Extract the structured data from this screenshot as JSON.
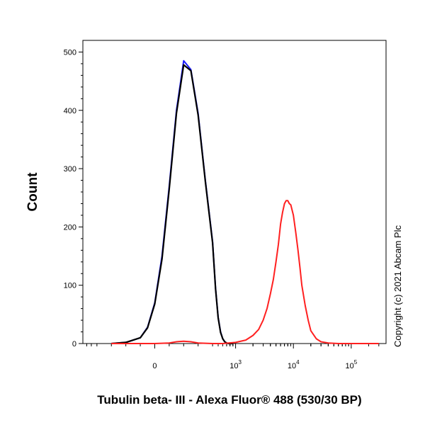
{
  "chart_data": {
    "type": "line",
    "title": "",
    "xlabel": "Tubulin beta- III - Alexa Fluor® 488 (530/30 BP)",
    "ylabel": "Count",
    "x_scale": "biexponential",
    "ylim": [
      0,
      520
    ],
    "y_ticks": [
      0,
      100,
      200,
      300,
      400,
      500
    ],
    "x_ticks": [
      {
        "value": 0,
        "label": "0"
      },
      {
        "value": 1000,
        "label": "10",
        "exp": "3"
      },
      {
        "value": 10000,
        "label": "10",
        "exp": "4"
      },
      {
        "value": 100000,
        "label": "10",
        "exp": "5"
      }
    ],
    "grid": false,
    "legend": "none",
    "annotation": "Copyright (c) 2021 Abcam Plc",
    "series": [
      {
        "color": "#1a1aff",
        "x": [
          -300,
          -200,
          -100,
          -50,
          0,
          50,
          100,
          150,
          200,
          250,
          300,
          350,
          400,
          450,
          500,
          550,
          600,
          650,
          700,
          750,
          800,
          900
        ],
        "y": [
          0,
          2,
          10,
          28,
          70,
          150,
          270,
          400,
          485,
          470,
          395,
          280,
          175,
          95,
          45,
          20,
          8,
          3,
          1,
          0,
          0,
          0
        ]
      },
      {
        "color": "#000000",
        "x": [
          -300,
          -200,
          -100,
          -50,
          0,
          50,
          100,
          150,
          200,
          250,
          300,
          350,
          400,
          450,
          500,
          550,
          600,
          650,
          700,
          750,
          800,
          900
        ],
        "y": [
          0,
          2,
          10,
          27,
          68,
          145,
          265,
          395,
          478,
          468,
          392,
          278,
          173,
          94,
          44,
          19,
          8,
          3,
          1,
          0,
          0,
          0
        ]
      },
      {
        "color": "#ff2020",
        "x": [
          -300,
          0,
          100,
          150,
          200,
          250,
          300,
          400,
          600,
          1000,
          1500,
          2000,
          2500,
          3000,
          3500,
          4000,
          4500,
          5000,
          5500,
          6000,
          6500,
          7000,
          7500,
          8000,
          8500,
          9000,
          10000,
          11000,
          12000,
          13000,
          14000,
          16000,
          18000,
          20000,
          25000,
          30000,
          40000,
          60000,
          100000,
          300000
        ],
        "y": [
          0,
          0,
          1,
          3,
          4,
          3,
          1,
          0,
          0,
          2,
          6,
          14,
          24,
          40,
          60,
          85,
          110,
          140,
          170,
          205,
          225,
          240,
          245,
          245,
          240,
          238,
          220,
          190,
          160,
          130,
          100,
          65,
          40,
          22,
          8,
          3,
          1,
          0,
          0,
          0
        ]
      }
    ]
  }
}
